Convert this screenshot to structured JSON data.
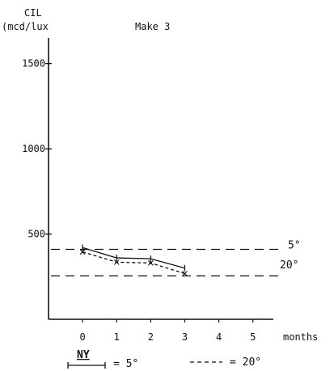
{
  "chart_data": {
    "type": "line",
    "ylabel_line1": "CIL",
    "ylabel_line2": "(mcd/lux",
    "title": "Make 3",
    "xlabel": "months",
    "xlim": [
      -1,
      5.6
    ],
    "ylim": [
      0,
      1650
    ],
    "x_ticks": [
      "0",
      "1",
      "2",
      "3",
      "4",
      "5"
    ],
    "y_ticks": [
      "500",
      "1000",
      "1500"
    ],
    "series": [
      {
        "name": "5°",
        "style": "solid",
        "x": [
          0,
          1,
          2,
          3
        ],
        "y": [
          420,
          360,
          355,
          300
        ]
      },
      {
        "name": "20°",
        "style": "dashed",
        "x": [
          0,
          1,
          2,
          3
        ],
        "y": [
          395,
          335,
          330,
          268
        ]
      }
    ],
    "reference_lines": [
      {
        "label": "5°",
        "y": 410
      },
      {
        "label": "20°",
        "y": 255
      }
    ],
    "legend": {
      "ny": "NY",
      "solid_label": "= 5°",
      "dashed_label": "= 20°"
    }
  }
}
